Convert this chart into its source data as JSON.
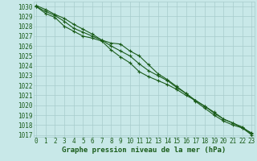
{
  "x": [
    0,
    1,
    2,
    3,
    4,
    5,
    6,
    7,
    8,
    9,
    10,
    11,
    12,
    13,
    14,
    15,
    16,
    17,
    18,
    19,
    20,
    21,
    22,
    23
  ],
  "line1": [
    1030.1,
    1029.7,
    1029.2,
    1028.8,
    1028.2,
    1027.7,
    1027.2,
    1026.6,
    1026.3,
    1026.2,
    1025.5,
    1025.0,
    1024.1,
    1023.2,
    1022.6,
    1021.9,
    1021.2,
    1020.4,
    1019.7,
    1019.0,
    1018.4,
    1018.0,
    1017.7,
    1017.2
  ],
  "line2": [
    1030.0,
    1029.3,
    1028.9,
    1028.0,
    1027.5,
    1027.0,
    1026.8,
    1026.5,
    1025.6,
    1024.9,
    1024.3,
    1023.4,
    1022.9,
    1022.5,
    1022.1,
    1021.6,
    1021.0,
    1020.5,
    1019.9,
    1019.3,
    1018.6,
    1018.2,
    1017.7,
    1017.0
  ],
  "line3": [
    1030.0,
    1029.5,
    1029.1,
    1028.5,
    1027.8,
    1027.4,
    1027.0,
    1026.6,
    1026.0,
    1025.5,
    1025.0,
    1024.2,
    1023.5,
    1023.0,
    1022.5,
    1021.8,
    1021.2,
    1020.5,
    1019.9,
    1019.2,
    1018.6,
    1018.2,
    1017.8,
    1017.1
  ],
  "ylim": [
    1016.8,
    1030.5
  ],
  "xlim": [
    -0.3,
    23.3
  ],
  "yticks": [
    1017,
    1018,
    1019,
    1020,
    1021,
    1022,
    1023,
    1024,
    1025,
    1026,
    1027,
    1028,
    1029,
    1030
  ],
  "xticks": [
    0,
    1,
    2,
    3,
    4,
    5,
    6,
    7,
    8,
    9,
    10,
    11,
    12,
    13,
    14,
    15,
    16,
    17,
    18,
    19,
    20,
    21,
    22,
    23
  ],
  "xlabel": "Graphe pression niveau de la mer (hPa)",
  "line_color": "#1a5c1a",
  "bg_color": "#c8e8e8",
  "grid_color": "#a8cccc",
  "tick_color": "#1a5c1a",
  "label_color": "#1a5c1a",
  "marker": "+",
  "linewidth": 0.8,
  "markersize": 3.5,
  "tick_fontsize": 5.5,
  "xlabel_fontsize": 6.5
}
